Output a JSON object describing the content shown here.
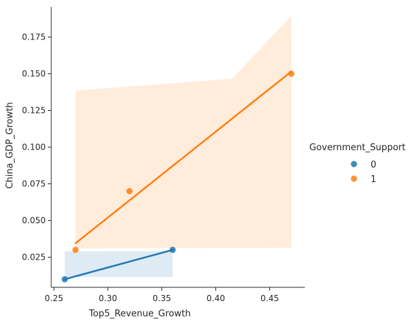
{
  "chart_data": {
    "type": "scatter",
    "xlabel": "Top5_Revenue_Growth",
    "ylabel": "China_GDP_Growth",
    "xlim": [
      0.2475,
      0.4825
    ],
    "ylim": [
      0.0045,
      0.1955
    ],
    "x_ticks": [
      0.25,
      0.3,
      0.35,
      0.4,
      0.45
    ],
    "x_tick_labels": [
      "0.25",
      "0.30",
      "0.35",
      "0.40",
      "0.45"
    ],
    "y_ticks": [
      0.025,
      0.05,
      0.075,
      0.1,
      0.125,
      0.15,
      0.175
    ],
    "y_tick_labels": [
      "0.025",
      "0.050",
      "0.075",
      "0.100",
      "0.125",
      "0.150",
      "0.175"
    ],
    "grid": false,
    "legend": {
      "title": "Government_Support",
      "placement": "right",
      "entries": [
        {
          "label": "0",
          "color": "#1f77b4"
        },
        {
          "label": "1",
          "color": "#ff7f0e"
        }
      ]
    },
    "series": [
      {
        "label": "0",
        "color": "#1f77b4",
        "points": [
          {
            "x": 0.26,
            "y": 0.01
          },
          {
            "x": 0.36,
            "y": 0.03
          }
        ],
        "fit": [
          {
            "x": 0.26,
            "y": 0.01
          },
          {
            "x": 0.36,
            "y": 0.03
          }
        ],
        "ci_upper": [
          {
            "x": 0.26,
            "y": 0.029
          },
          {
            "x": 0.36,
            "y": 0.029
          }
        ],
        "ci_lower": [
          {
            "x": 0.26,
            "y": 0.0115
          },
          {
            "x": 0.36,
            "y": 0.0115
          }
        ]
      },
      {
        "label": "1",
        "color": "#ff7f0e",
        "points": [
          {
            "x": 0.27,
            "y": 0.03
          },
          {
            "x": 0.32,
            "y": 0.07
          },
          {
            "x": 0.47,
            "y": 0.15
          }
        ],
        "fit": [
          {
            "x": 0.27,
            "y": 0.0345
          },
          {
            "x": 0.47,
            "y": 0.1515
          }
        ],
        "ci_upper": [
          {
            "x": 0.27,
            "y": 0.1385
          },
          {
            "x": 0.415,
            "y": 0.1465
          },
          {
            "x": 0.47,
            "y": 0.1895
          }
        ],
        "ci_lower": [
          {
            "x": 0.27,
            "y": 0.031
          },
          {
            "x": 0.47,
            "y": 0.0315
          }
        ]
      }
    ]
  }
}
